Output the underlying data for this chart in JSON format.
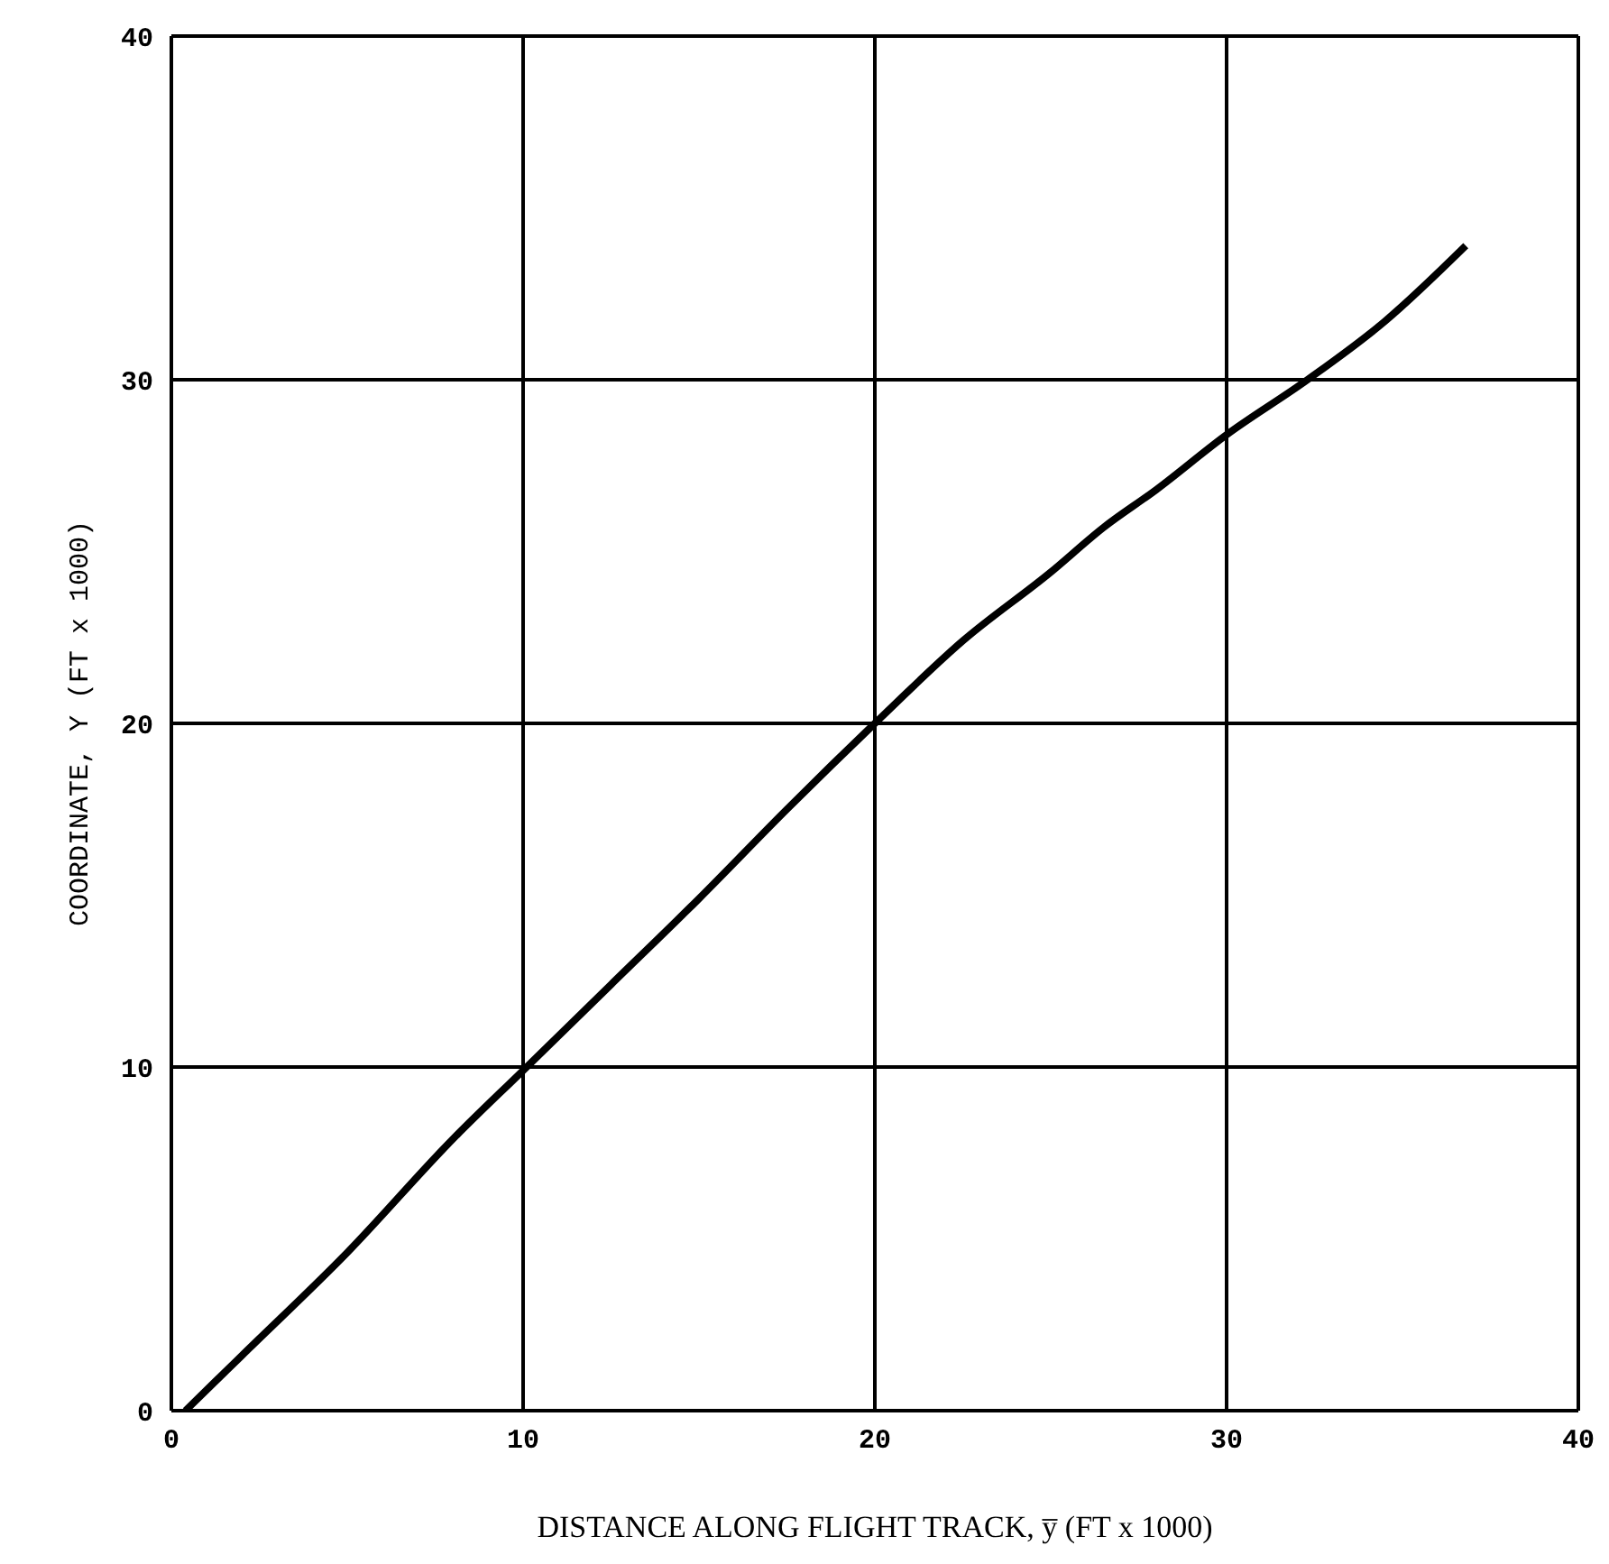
{
  "chart_data": {
    "type": "line",
    "xlabel": "DISTANCE ALONG FLIGHT TRACK,  y̅ (FT x 1000)",
    "ylabel": "COORDINATE,  Y (FT x 1000)",
    "x": [
      0.4,
      2,
      5,
      8,
      10,
      12.5,
      15,
      17.5,
      20,
      22.5,
      25,
      26.5,
      28,
      30,
      32.3,
      34.5,
      36.8
    ],
    "series": [
      {
        "color": "#000000",
        "values": [
          0,
          1.6,
          4.6,
          7.9,
          9.9,
          12.4,
          14.9,
          17.5,
          20,
          22.4,
          24.4,
          25.7,
          26.8,
          28.4,
          30,
          31.7,
          33.9
        ]
      }
    ],
    "xlim": [
      0,
      40
    ],
    "ylim": [
      0,
      40
    ],
    "xticks": [
      0,
      10,
      20,
      30,
      40
    ],
    "yticks": [
      0,
      10,
      20,
      30,
      40
    ],
    "grid": true,
    "marker": "none",
    "line_style": "solid"
  }
}
